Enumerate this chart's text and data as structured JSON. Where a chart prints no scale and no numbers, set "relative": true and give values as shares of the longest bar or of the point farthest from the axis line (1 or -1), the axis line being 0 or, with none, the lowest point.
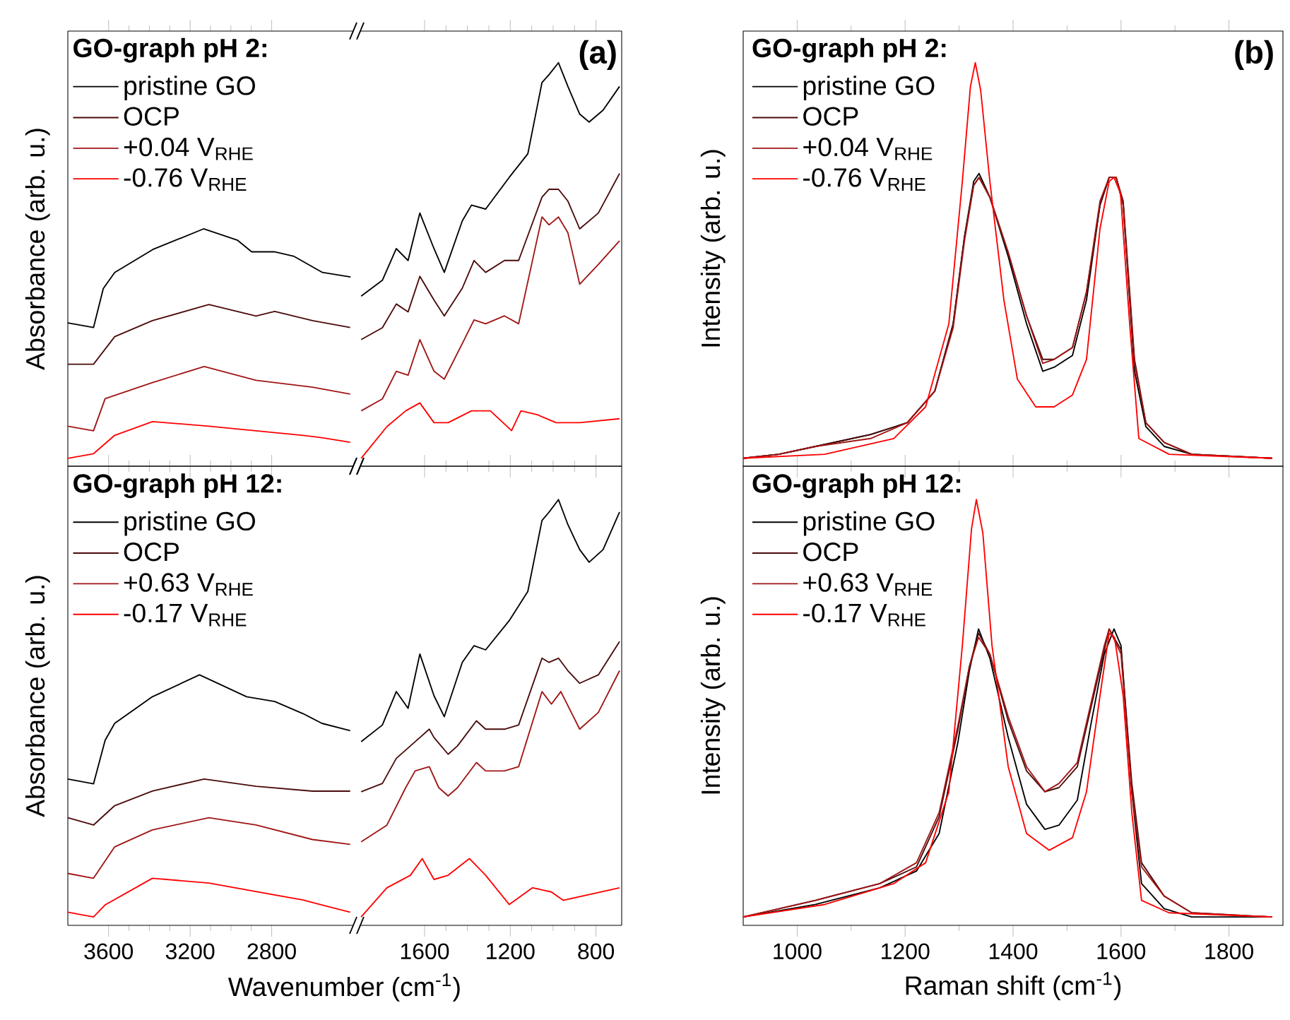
{
  "chart_data": [
    {
      "type": "line",
      "relative": true,
      "xlim": [
        3800,
        2400
      ],
      "xticks": [
        3600,
        3200,
        2800
      ],
      "tick_labels": false,
      "legend": "top left",
      "legend_title": "GO-graph pH 2:",
      "ylabel": "Absorbance (arb. u.)",
      "series": [
        {
          "name": "pristine GO",
          "color": "#000000",
          "x": [
            3800,
            3674,
            3626,
            3570,
            3383,
            3134,
            2967,
            2898,
            2787,
            2690,
            2551,
            2413
          ],
          "values": [
            0.59,
            0.57,
            0.74,
            0.81,
            0.91,
            1.0,
            0.95,
            0.9,
            0.9,
            0.88,
            0.81,
            0.79
          ]
        },
        {
          "name": "OCP",
          "color": "#4a0a0a",
          "x": [
            3800,
            3674,
            3570,
            3385,
            3108,
            2877,
            2785,
            2600,
            2415
          ],
          "values": [
            0.41,
            0.41,
            0.53,
            0.6,
            0.67,
            0.62,
            0.64,
            0.6,
            0.57
          ]
        },
        {
          "name": "+0.04 V$_{RHE}$",
          "color": "#a01515",
          "x": [
            3800,
            3674,
            3617,
            3385,
            3131,
            2877,
            2600,
            2415
          ],
          "values": [
            0.14,
            0.12,
            0.26,
            0.33,
            0.4,
            0.34,
            0.31,
            0.28
          ]
        },
        {
          "name": "-0.76 V$_{RHE}$",
          "color": "#ff0000",
          "x": [
            3800,
            3674,
            3570,
            3385,
            3108,
            2646,
            2554,
            2415
          ],
          "values": [
            0,
            0.02,
            0.1,
            0.16,
            0.14,
            0.1,
            0.09,
            0.07
          ]
        }
      ]
    },
    {
      "type": "line",
      "relative": true,
      "xlim": [
        1900,
        680
      ],
      "xticks": [
        1600,
        1200,
        800
      ],
      "tick_labels": false,
      "annotations": [
        "(a)"
      ],
      "series": [
        {
          "color": "#000000",
          "x": [
            1896,
            1797,
            1732,
            1677,
            1622,
            1556,
            1508,
            1424,
            1381,
            1315,
            1205,
            1118,
            1052,
            1019,
            975,
            931,
            876,
            832,
            767,
            690
          ],
          "values": [
            0.41,
            0.45,
            0.53,
            0.5,
            0.62,
            0.53,
            0.47,
            0.6,
            0.64,
            0.63,
            0.71,
            0.77,
            0.95,
            0.97,
            1.0,
            0.94,
            0.87,
            0.85,
            0.88,
            0.94
          ]
        },
        {
          "color": "#4a0a0a",
          "x": [
            1896,
            1797,
            1732,
            1677,
            1622,
            1556,
            1508,
            1424,
            1369,
            1315,
            1227,
            1161,
            1052,
            1019,
            975,
            931,
            876,
            789,
            690
          ],
          "values": [
            0.3,
            0.33,
            0.39,
            0.37,
            0.46,
            0.4,
            0.36,
            0.43,
            0.5,
            0.47,
            0.5,
            0.5,
            0.66,
            0.68,
            0.68,
            0.65,
            0.58,
            0.62,
            0.72
          ]
        },
        {
          "color": "#a01515",
          "x": [
            1896,
            1797,
            1732,
            1677,
            1622,
            1556,
            1508,
            1424,
            1369,
            1315,
            1227,
            1161,
            1052,
            1019,
            975,
            931,
            876,
            789,
            690
          ],
          "values": [
            0.12,
            0.15,
            0.22,
            0.21,
            0.3,
            0.22,
            0.2,
            0.29,
            0.35,
            0.34,
            0.36,
            0.34,
            0.61,
            0.59,
            0.61,
            0.57,
            0.44,
            0.49,
            0.55
          ]
        },
        {
          "color": "#ff0000",
          "x": [
            1896,
            1776,
            1688,
            1622,
            1556,
            1490,
            1381,
            1293,
            1194,
            1150,
            1073,
            986,
            876,
            690
          ],
          "values": [
            0,
            0.08,
            0.12,
            0.14,
            0.09,
            0.09,
            0.12,
            0.12,
            0.07,
            0.12,
            0.11,
            0.09,
            0.09,
            0.1
          ]
        }
      ]
    },
    {
      "type": "line",
      "relative": true,
      "xlim": [
        900,
        1900
      ],
      "xticks": [
        1000,
        1200,
        1400,
        1600,
        1800
      ],
      "tick_labels": false,
      "legend": "top left",
      "legend_title": "GO-graph pH 2:",
      "ylabel": "Intensity (arb. u.)",
      "annotations": [
        "(b)"
      ],
      "series": [
        {
          "name": "pristine GO",
          "color": "#000000",
          "x": [
            900,
            966,
            1034,
            1136,
            1204,
            1255,
            1289,
            1310,
            1327,
            1337,
            1357,
            1391,
            1425,
            1455,
            1476,
            1510,
            1536,
            1561,
            1578,
            1591,
            1604,
            1625,
            1646,
            1680,
            1731,
            1880
          ],
          "values": [
            0,
            0.01,
            0.03,
            0.06,
            0.09,
            0.17,
            0.34,
            0.56,
            0.7,
            0.72,
            0.66,
            0.51,
            0.34,
            0.22,
            0.23,
            0.26,
            0.4,
            0.64,
            0.71,
            0.71,
            0.64,
            0.22,
            0.08,
            0.03,
            0.01,
            0
          ]
        },
        {
          "name": "OCP",
          "color": "#4a0a0a",
          "x": [
            900,
            966,
            1034,
            1136,
            1204,
            1255,
            1289,
            1310,
            1327,
            1337,
            1357,
            1391,
            1425,
            1455,
            1476,
            1510,
            1536,
            1561,
            1578,
            1591,
            1604,
            1625,
            1646,
            1680,
            1731,
            1880
          ],
          "values": [
            0,
            0.01,
            0.03,
            0.06,
            0.09,
            0.17,
            0.34,
            0.56,
            0.69,
            0.71,
            0.66,
            0.52,
            0.36,
            0.25,
            0.25,
            0.28,
            0.42,
            0.64,
            0.71,
            0.71,
            0.65,
            0.25,
            0.09,
            0.04,
            0.01,
            0
          ]
        },
        {
          "name": "+0.04 V$_{RHE}$",
          "color": "#a01515",
          "x": [
            900,
            966,
            1034,
            1136,
            1204,
            1255,
            1289,
            1310,
            1327,
            1337,
            1357,
            1391,
            1425,
            1455,
            1476,
            1510,
            1536,
            1561,
            1578,
            1591,
            1604,
            1625,
            1646,
            1680,
            1731,
            1880
          ],
          "values": [
            0,
            0.01,
            0.03,
            0.05,
            0.09,
            0.17,
            0.33,
            0.55,
            0.69,
            0.71,
            0.66,
            0.52,
            0.36,
            0.24,
            0.25,
            0.28,
            0.42,
            0.65,
            0.71,
            0.71,
            0.64,
            0.24,
            0.09,
            0.04,
            0.01,
            0
          ]
        },
        {
          "name": "-0.76 V$_{RHE}$",
          "color": "#ff0000",
          "x": [
            900,
            1051,
            1179,
            1238,
            1281,
            1306,
            1321,
            1330,
            1340,
            1357,
            1383,
            1408,
            1442,
            1476,
            1510,
            1536,
            1561,
            1578,
            1587,
            1599,
            1616,
            1633,
            1689,
            1880
          ],
          "values": [
            0,
            0.01,
            0.05,
            0.13,
            0.34,
            0.7,
            0.94,
            1.0,
            0.93,
            0.7,
            0.4,
            0.2,
            0.13,
            0.13,
            0.16,
            0.25,
            0.58,
            0.7,
            0.71,
            0.67,
            0.34,
            0.05,
            0.01,
            0
          ]
        }
      ]
    },
    {
      "type": "line",
      "relative": true,
      "xlim": [
        3800,
        2400
      ],
      "xticks": [
        3600,
        3200,
        2800
      ],
      "legend": "top left",
      "legend_title": "GO-graph pH 12:",
      "ylabel": "Absorbance (arb. u.)",
      "xlabel": "Wavenumber (cm$^{-1}$)",
      "series": [
        {
          "name": "pristine GO",
          "color": "#000000",
          "x": [
            3800,
            3674,
            3617,
            3570,
            3385,
            3154,
            2923,
            2785,
            2646,
            2554,
            2415
          ],
          "values": [
            0.57,
            0.55,
            0.73,
            0.8,
            0.91,
            1.0,
            0.91,
            0.89,
            0.84,
            0.8,
            0.77
          ]
        },
        {
          "name": "OCP",
          "color": "#4a0a0a",
          "x": [
            3800,
            3674,
            3570,
            3385,
            3131,
            2877,
            2600,
            2415
          ],
          "values": [
            0.41,
            0.38,
            0.46,
            0.52,
            0.57,
            0.54,
            0.52,
            0.52
          ]
        },
        {
          "name": "+0.63 V$_{RHE}$",
          "color": "#a01515",
          "x": [
            3800,
            3674,
            3570,
            3385,
            3108,
            2877,
            2600,
            2415
          ],
          "values": [
            0.18,
            0.16,
            0.29,
            0.36,
            0.41,
            0.38,
            0.32,
            0.3
          ]
        },
        {
          "name": "-0.17 V$_{RHE}$",
          "color": "#ff0000",
          "x": [
            3800,
            3674,
            3617,
            3385,
            3108,
            2646,
            2554,
            2415
          ],
          "values": [
            0.02,
            0,
            0.05,
            0.16,
            0.14,
            0.07,
            0.05,
            0.02
          ]
        }
      ]
    },
    {
      "type": "line",
      "relative": true,
      "xlim": [
        1900,
        680
      ],
      "xticks": [
        1600,
        1200,
        800
      ],
      "series": [
        {
          "color": "#000000",
          "x": [
            1896,
            1797,
            1732,
            1677,
            1622,
            1556,
            1508,
            1424,
            1369,
            1315,
            1205,
            1118,
            1052,
            1019,
            975,
            931,
            876,
            832,
            767,
            690
          ],
          "values": [
            0.42,
            0.46,
            0.54,
            0.5,
            0.63,
            0.53,
            0.48,
            0.61,
            0.65,
            0.64,
            0.71,
            0.78,
            0.95,
            0.97,
            1.0,
            0.94,
            0.88,
            0.85,
            0.88,
            0.97
          ]
        },
        {
          "color": "#4a0a0a",
          "x": [
            1896,
            1797,
            1732,
            1622,
            1578,
            1556,
            1490,
            1446,
            1358,
            1315,
            1227,
            1161,
            1052,
            1019,
            975,
            931,
            876,
            789,
            690
          ],
          "values": [
            0.3,
            0.32,
            0.38,
            0.43,
            0.45,
            0.43,
            0.39,
            0.41,
            0.47,
            0.45,
            0.45,
            0.46,
            0.62,
            0.61,
            0.62,
            0.59,
            0.56,
            0.58,
            0.66
          ]
        },
        {
          "color": "#a01515",
          "x": [
            1896,
            1776,
            1688,
            1644,
            1578,
            1534,
            1490,
            1446,
            1358,
            1315,
            1227,
            1161,
            1052,
            1008,
            964,
            876,
            789,
            690
          ],
          "values": [
            0.18,
            0.22,
            0.31,
            0.35,
            0.36,
            0.31,
            0.29,
            0.31,
            0.37,
            0.35,
            0.35,
            0.36,
            0.54,
            0.51,
            0.54,
            0.45,
            0.49,
            0.59
          ]
        },
        {
          "color": "#ff0000",
          "x": [
            1896,
            1776,
            1666,
            1611,
            1556,
            1490,
            1391,
            1315,
            1205,
            1096,
            1008,
            953,
            690
          ],
          "values": [
            0,
            0.07,
            0.1,
            0.14,
            0.09,
            0.1,
            0.14,
            0.1,
            0.03,
            0.07,
            0.06,
            0.04,
            0.07
          ]
        }
      ]
    },
    {
      "type": "line",
      "relative": true,
      "xlim": [
        900,
        1900
      ],
      "xticks": [
        1000,
        1200,
        1400,
        1600,
        1800
      ],
      "legend": "top left",
      "legend_title": "GO-graph pH 12:",
      "ylabel": "Intensity (arb. u.)",
      "xlabel": "Raman shift (cm$^{-1}$)",
      "series": [
        {
          "name": "pristine GO",
          "color": "#000000",
          "x": [
            900,
            1034,
            1153,
            1221,
            1263,
            1298,
            1319,
            1336,
            1357,
            1391,
            1425,
            1459,
            1485,
            1519,
            1544,
            1569,
            1587,
            1600,
            1620,
            1638,
            1680,
            1731,
            1880
          ],
          "values": [
            0,
            0.03,
            0.07,
            0.11,
            0.2,
            0.42,
            0.59,
            0.69,
            0.62,
            0.43,
            0.27,
            0.21,
            0.22,
            0.28,
            0.46,
            0.63,
            0.69,
            0.65,
            0.3,
            0.08,
            0.02,
            0,
            0
          ]
        },
        {
          "name": "OCP",
          "color": "#4a0a0a",
          "x": [
            900,
            1034,
            1153,
            1221,
            1263,
            1298,
            1319,
            1336,
            1357,
            1391,
            1425,
            1459,
            1485,
            1519,
            1544,
            1569,
            1578,
            1600,
            1620,
            1638,
            1680,
            1731,
            1880
          ],
          "values": [
            0,
            0.04,
            0.08,
            0.12,
            0.24,
            0.45,
            0.6,
            0.68,
            0.63,
            0.47,
            0.35,
            0.3,
            0.31,
            0.36,
            0.5,
            0.64,
            0.69,
            0.64,
            0.32,
            0.13,
            0.05,
            0.01,
            0
          ]
        },
        {
          "name": "+0.63 V$_{RHE}$",
          "color": "#a01515",
          "x": [
            900,
            1034,
            1153,
            1221,
            1263,
            1298,
            1319,
            1336,
            1357,
            1391,
            1425,
            1459,
            1485,
            1519,
            1544,
            1569,
            1578,
            1600,
            1620,
            1638,
            1680,
            1731,
            1880
          ],
          "values": [
            0,
            0.04,
            0.08,
            0.13,
            0.25,
            0.46,
            0.6,
            0.67,
            0.63,
            0.48,
            0.36,
            0.3,
            0.32,
            0.37,
            0.51,
            0.65,
            0.69,
            0.63,
            0.3,
            0.12,
            0.05,
            0.01,
            0
          ]
        },
        {
          "name": "-0.17 V$_{RHE}$",
          "color": "#ff0000",
          "x": [
            900,
            1051,
            1179,
            1238,
            1281,
            1306,
            1323,
            1332,
            1344,
            1361,
            1391,
            1425,
            1467,
            1510,
            1536,
            1561,
            1578,
            1588,
            1604,
            1620,
            1638,
            1689,
            1880
          ],
          "values": [
            0,
            0.03,
            0.08,
            0.13,
            0.3,
            0.65,
            0.93,
            1.0,
            0.92,
            0.65,
            0.36,
            0.2,
            0.16,
            0.19,
            0.3,
            0.53,
            0.68,
            0.67,
            0.53,
            0.25,
            0.04,
            0.01,
            0
          ]
        }
      ]
    }
  ]
}
